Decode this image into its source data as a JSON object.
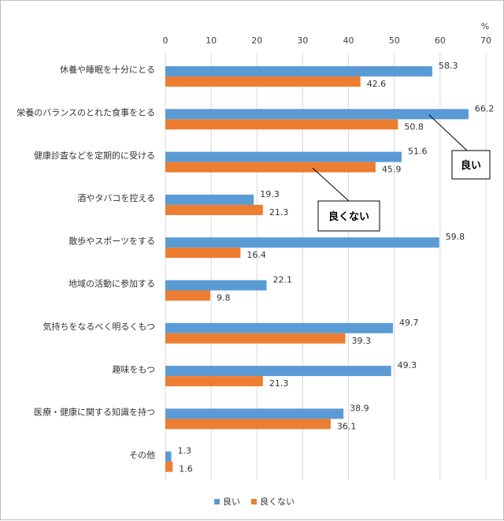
{
  "chart_data": {
    "type": "bar",
    "orientation": "horizontal",
    "unit": "%",
    "categories": [
      "休養や睡眠を十分にとる",
      "栄養のバランスのとれた食事をとる",
      "健康診査などを定期的に受ける",
      "酒やタバコを控える",
      "散歩やスポーツをする",
      "地域の活動に参加する",
      "気持ちをなるべく明るくもつ",
      "趣味をもつ",
      "医療・健康に関する知識を持つ",
      "その他"
    ],
    "series": [
      {
        "name": "良い",
        "color": "#5B9BD5",
        "values": [
          58.3,
          66.2,
          51.6,
          19.3,
          59.8,
          22.1,
          49.7,
          49.3,
          38.9,
          1.3
        ]
      },
      {
        "name": "良くない",
        "color": "#ED7D31",
        "values": [
          42.6,
          50.8,
          45.9,
          21.3,
          16.4,
          9.8,
          39.3,
          21.3,
          36.1,
          1.6
        ]
      }
    ],
    "xlim": [
      0,
      70
    ],
    "xticks": [
      0,
      10,
      20,
      30,
      40,
      50,
      60,
      70
    ],
    "grid": true,
    "legend": "bottom",
    "annotations": [
      {
        "text": "良い",
        "series": 0,
        "category": 1
      },
      {
        "text": "良くない",
        "series": 1,
        "category": 2
      }
    ]
  }
}
